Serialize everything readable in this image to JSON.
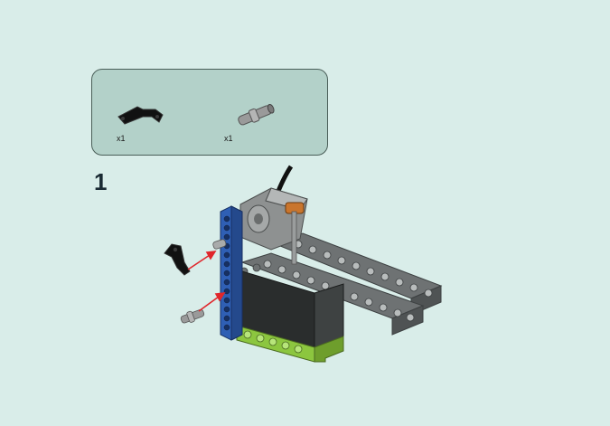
{
  "parts": [
    {
      "name": "angled-beam",
      "quantity": "x1"
    },
    {
      "name": "connector-pin",
      "quantity": "x1"
    }
  ],
  "step": {
    "number": "1"
  },
  "colors": {
    "background": "#d9ede9",
    "parts_box": "#b3d1c9",
    "arrow": "#e0262b",
    "beam_blue": "#2f5fb4",
    "brick_gray": "#5a5f60",
    "brick_lime": "#8cc63f"
  }
}
